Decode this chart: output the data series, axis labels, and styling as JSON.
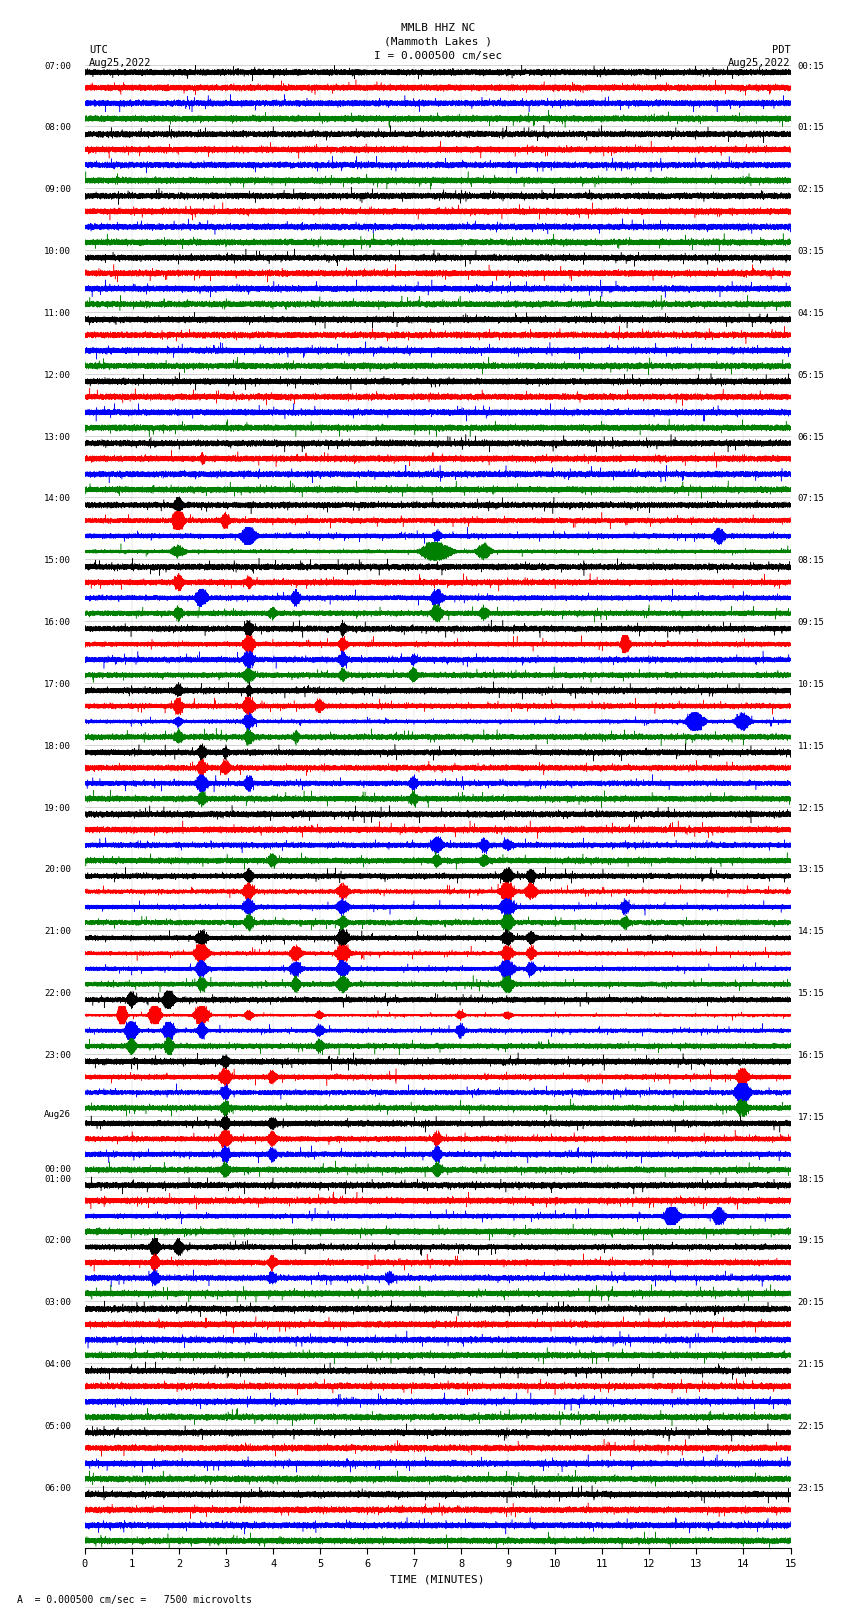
{
  "title_line1": "MMLB HHZ NC",
  "title_line2": "(Mammoth Lakes )",
  "title_line3": "I = 0.000500 cm/sec",
  "left_label_top": "UTC",
  "left_label_date": "Aug25,2022",
  "right_label_top": "PDT",
  "right_label_date": "Aug25,2022",
  "xlabel": "TIME (MINUTES)",
  "bottom_note": "A  = 0.000500 cm/sec =   7500 microvolts",
  "utc_times": [
    "07:00",
    "08:00",
    "09:00",
    "10:00",
    "11:00",
    "12:00",
    "13:00",
    "14:00",
    "15:00",
    "16:00",
    "17:00",
    "18:00",
    "19:00",
    "20:00",
    "21:00",
    "22:00",
    "23:00",
    "Aug26\n00:00",
    "01:00",
    "02:00",
    "03:00",
    "04:00",
    "05:00",
    "06:00"
  ],
  "pdt_times": [
    "00:15",
    "01:15",
    "02:15",
    "03:15",
    "04:15",
    "05:15",
    "06:15",
    "07:15",
    "08:15",
    "09:15",
    "10:15",
    "11:15",
    "12:15",
    "13:15",
    "14:15",
    "15:15",
    "16:15",
    "17:15",
    "18:15",
    "19:15",
    "20:15",
    "21:15",
    "22:15",
    "23:15"
  ],
  "colors": [
    "black",
    "red",
    "blue",
    "green"
  ],
  "bg_color": "#ffffff",
  "n_rows": 24,
  "traces_per_row": 4,
  "n_minutes": 15,
  "sample_rate": 100
}
